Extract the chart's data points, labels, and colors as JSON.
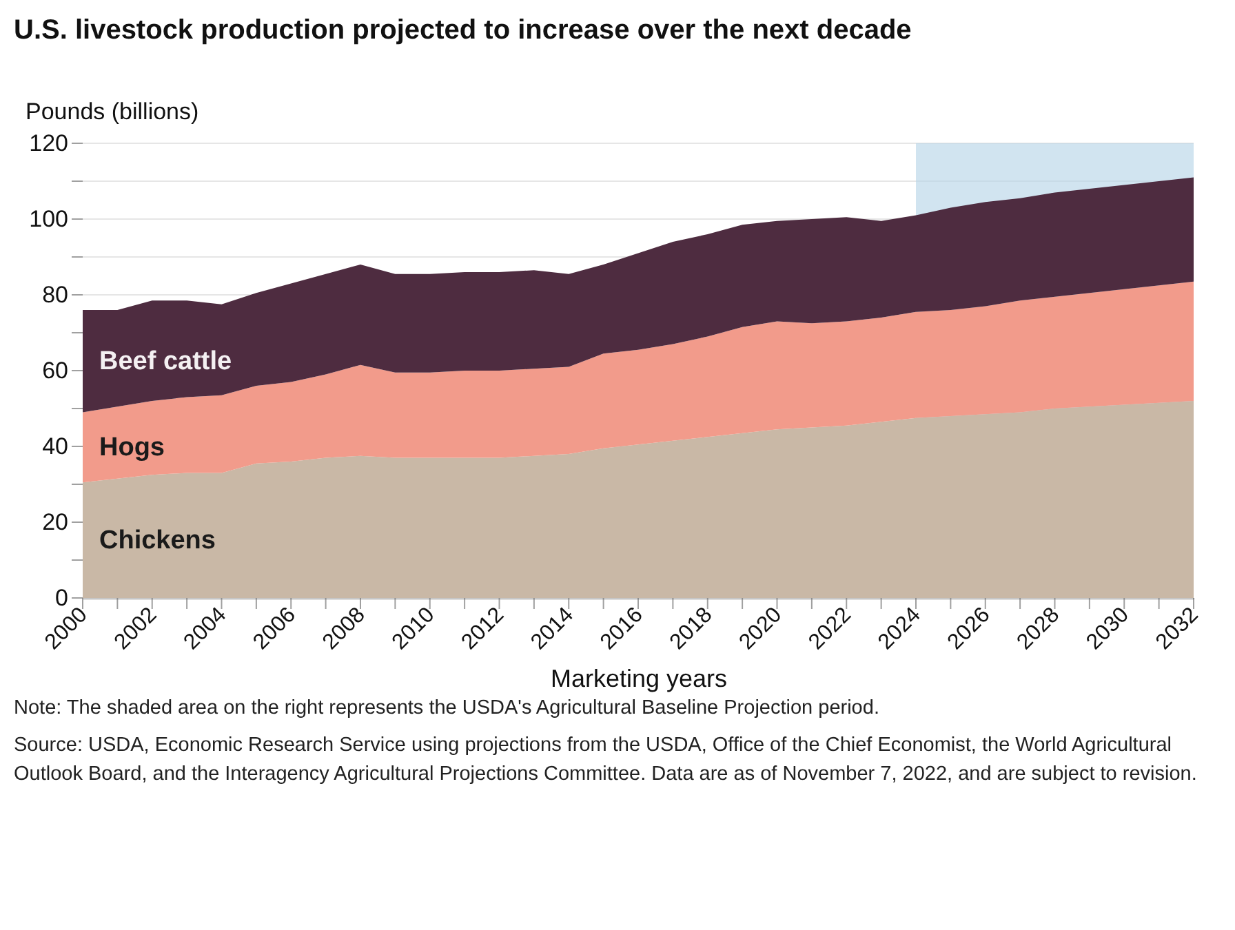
{
  "chart_data": {
    "type": "area",
    "stacked": true,
    "title": "U.S. livestock production projected to increase over the next decade",
    "ylabel": "Pounds (billions)",
    "xlabel": "Marketing years",
    "x": [
      2000,
      2001,
      2002,
      2003,
      2004,
      2005,
      2006,
      2007,
      2008,
      2009,
      2010,
      2011,
      2012,
      2013,
      2014,
      2015,
      2016,
      2017,
      2018,
      2019,
      2020,
      2021,
      2022,
      2023,
      2024,
      2025,
      2026,
      2027,
      2028,
      2029,
      2030,
      2031,
      2032
    ],
    "series": [
      {
        "name": "Chickens",
        "color": "#c9b8a6",
        "values": [
          30.5,
          31.5,
          32.5,
          33,
          33,
          35.5,
          36,
          37,
          37.5,
          37,
          37,
          37,
          37,
          37.5,
          38,
          39.5,
          40.5,
          41.5,
          42.5,
          43.5,
          44.5,
          45,
          45.5,
          46.5,
          47.5,
          48,
          48.5,
          49,
          50,
          50.5,
          51,
          51.5,
          52
        ]
      },
      {
        "name": "Hogs",
        "color": "#f29b8b",
        "values": [
          18.5,
          19,
          19.5,
          20,
          20.5,
          20.5,
          21,
          22,
          24,
          22.5,
          22.5,
          23,
          23,
          23,
          23,
          25,
          25,
          25.5,
          26.5,
          28,
          28.5,
          27.5,
          27.5,
          27.5,
          28,
          28,
          28.5,
          29.5,
          29.5,
          30,
          30.5,
          31,
          31.5
        ]
      },
      {
        "name": "Beef cattle",
        "color": "#4e2c40",
        "values": [
          27,
          25.5,
          26.5,
          25.5,
          24,
          24.5,
          26,
          26.5,
          26.5,
          26,
          26,
          26,
          26,
          26,
          24.5,
          23.5,
          25.5,
          27,
          27,
          27,
          26.5,
          27.5,
          27.5,
          25.5,
          25.5,
          27,
          27.5,
          27,
          27.5,
          27.5,
          27.5,
          27.5,
          27.5
        ]
      }
    ],
    "xlim": [
      2000,
      2032
    ],
    "xticks": [
      2000,
      {
        "value": 2001,
        "label": null
      },
      2002,
      {
        "value": 2003,
        "label": null
      },
      2004,
      {
        "value": 2005,
        "label": null
      },
      2006,
      {
        "value": 2007,
        "label": null
      },
      2008,
      {
        "value": 2009,
        "label": null
      },
      2010,
      {
        "value": 2011,
        "label": null
      },
      2012,
      {
        "value": 2013,
        "label": null
      },
      2014,
      {
        "value": 2015,
        "label": null
      },
      2016,
      {
        "value": 2017,
        "label": null
      },
      2018,
      {
        "value": 2019,
        "label": null
      },
      2020,
      {
        "value": 2021,
        "label": null
      },
      2022,
      {
        "value": 2023,
        "label": null
      },
      2024,
      {
        "value": 2025,
        "label": null
      },
      2026,
      {
        "value": 2027,
        "label": null
      },
      2028,
      {
        "value": 2029,
        "label": null
      },
      2030,
      {
        "value": 2031,
        "label": null
      },
      2032
    ],
    "ylim": [
      0,
      120
    ],
    "yticks": [
      0,
      {
        "value": 10,
        "label": null
      },
      20,
      {
        "value": 30,
        "label": null
      },
      40,
      {
        "value": 50,
        "label": null
      },
      60,
      {
        "value": 70,
        "label": null
      },
      80,
      {
        "value": 90,
        "label": null
      },
      100,
      {
        "value": 110,
        "label": null
      },
      120
    ],
    "grid": "y",
    "legend": false,
    "bands": [
      {
        "axis": "x",
        "from": 2024,
        "to": 2032,
        "color": "#b9d6e8"
      }
    ],
    "annotations": [
      "Note: The shaded area on the right represents the USDA's Agricultural Baseline Projection period.",
      "Source: USDA, Economic Research Service using projections from the USDA, Office of the Chief Economist, the World Agricultural Outlook Board, and the Interagency Agricultural Projections Committee. Data are as of November 7, 2022, and are subject to revision."
    ]
  }
}
